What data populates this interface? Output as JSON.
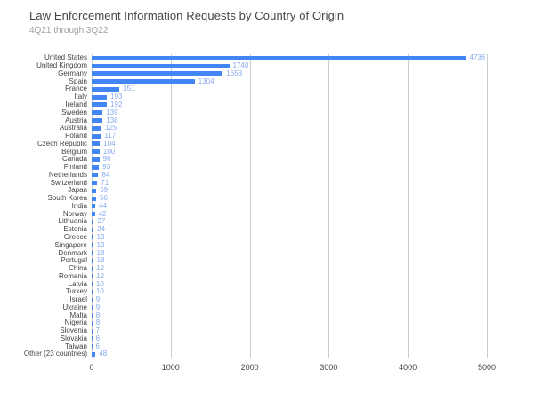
{
  "header": {
    "title": "Law Enforcement Information Requests by Country of Origin",
    "subtitle": "4Q21 through 3Q22"
  },
  "chart_data": {
    "type": "bar",
    "orientation": "horizontal",
    "title": "Law Enforcement Information Requests by Country of Origin",
    "subtitle": "4Q21 through 3Q22",
    "categories": [
      "United States",
      "United Kingdom",
      "Germany",
      "Spain",
      "France",
      "Italy",
      "Ireland",
      "Sweden",
      "Austria",
      "Australia",
      "Poland",
      "Czech Republic",
      "Belgium",
      "Canada",
      "Finland",
      "Netherlands",
      "Switzerland",
      "Japan",
      "South Korea",
      "India",
      "Norway",
      "Lithuania",
      "Estonia",
      "Greece",
      "Singapore",
      "Denmark",
      "Portugal",
      "China",
      "Romania",
      "Latvia",
      "Turkey",
      "Israel",
      "Ukraine",
      "Malta",
      "Nigeria",
      "Slovenia",
      "Slovakia",
      "Taiwan",
      "Other (23 countries)"
    ],
    "values": [
      4736,
      1740,
      1658,
      1304,
      351,
      193,
      192,
      139,
      138,
      125,
      117,
      104,
      100,
      96,
      93,
      84,
      71,
      59,
      56,
      44,
      42,
      27,
      24,
      19,
      19,
      18,
      18,
      12,
      12,
      10,
      10,
      9,
      9,
      8,
      8,
      7,
      6,
      6,
      48
    ],
    "xlabel": "",
    "ylabel": "",
    "xlim": [
      0,
      5000
    ],
    "x_ticks": [
      0,
      1000,
      2000,
      3000,
      4000,
      5000
    ],
    "grid": true,
    "legend": "none",
    "bar_color": "#4285f4",
    "value_label_color": "#87a9ef",
    "gridline_color": "#cccccc"
  }
}
